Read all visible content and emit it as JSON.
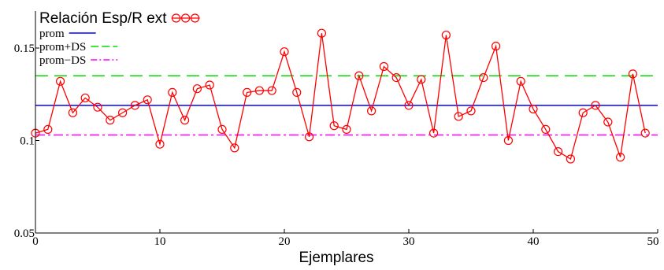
{
  "chart_data": {
    "type": "line",
    "xlabel": "Ejemplares",
    "ylabel": "",
    "xlim": [
      0,
      50
    ],
    "ylim": [
      0.05,
      0.17
    ],
    "x_ticks": [
      0,
      10,
      20,
      30,
      40,
      50
    ],
    "y_ticks": [
      0.05,
      0.1,
      0.15
    ],
    "x_tick_labels": [
      "0",
      "10",
      "20",
      "30",
      "40",
      "50"
    ],
    "y_tick_labels": [
      "0.05",
      "0.1",
      "0.15"
    ],
    "grid": false,
    "legend_position": "top-left",
    "series": [
      {
        "name": "Relación Esp/R ext",
        "color": "#ff0000",
        "marker": "circle",
        "x": [
          0,
          1,
          2,
          3,
          4,
          5,
          6,
          7,
          8,
          9,
          10,
          11,
          12,
          13,
          14,
          15,
          16,
          17,
          18,
          19,
          20,
          21,
          22,
          23,
          24,
          25,
          26,
          27,
          28,
          29,
          30,
          31,
          32,
          33,
          34,
          35,
          36,
          37,
          38,
          39,
          40,
          41,
          42,
          43,
          44,
          45,
          46,
          47,
          48,
          49
        ],
        "values": [
          0.104,
          0.106,
          0.132,
          0.115,
          0.123,
          0.118,
          0.111,
          0.115,
          0.119,
          0.122,
          0.098,
          0.126,
          0.111,
          0.128,
          0.13,
          0.106,
          0.096,
          0.126,
          0.127,
          0.127,
          0.148,
          0.126,
          0.102,
          0.158,
          0.108,
          0.106,
          0.135,
          0.116,
          0.14,
          0.134,
          0.119,
          0.133,
          0.104,
          0.157,
          0.113,
          0.116,
          0.134,
          0.151,
          0.1,
          0.132,
          0.117,
          0.106,
          0.094,
          0.09,
          0.115,
          0.119,
          0.11,
          0.091,
          0.136,
          0.104
        ]
      }
    ],
    "reference_lines": [
      {
        "name": "prom",
        "value": 0.119,
        "color": "#0000ff",
        "style": "solid"
      },
      {
        "name": "prom+DS",
        "value": 0.135,
        "color": "#00dd00",
        "style": "dashed"
      },
      {
        "name": "prom−DS",
        "value": 0.103,
        "color": "#ff00ff",
        "style": "dash-dot"
      }
    ]
  }
}
